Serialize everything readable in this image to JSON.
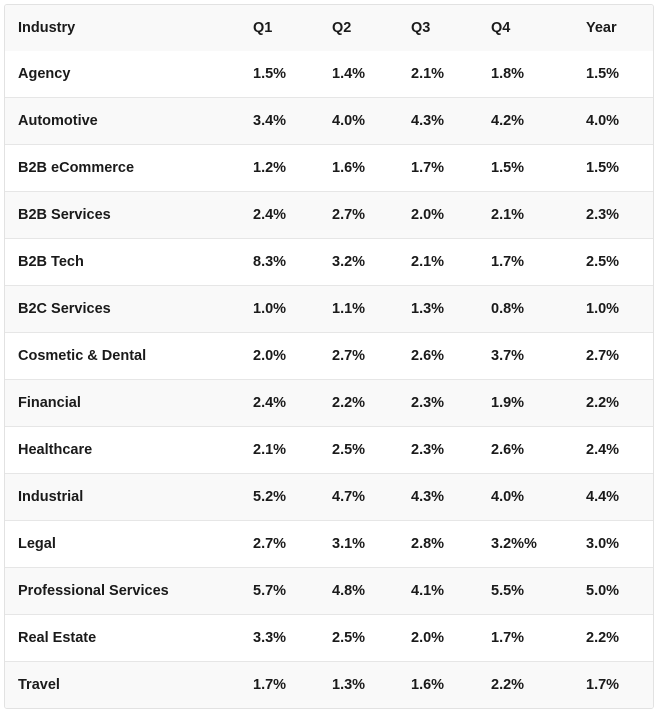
{
  "table": {
    "headers": [
      "Industry",
      "Q1",
      "Q2",
      "Q3",
      "Q4",
      "Year"
    ],
    "rows": [
      [
        "Agency",
        "1.5%",
        "1.4%",
        "2.1%",
        "1.8%",
        "1.5%"
      ],
      [
        "Automotive",
        "3.4%",
        "4.0%",
        "4.3%",
        "4.2%",
        "4.0%"
      ],
      [
        "B2B eCommerce",
        "1.2%",
        "1.6%",
        "1.7%",
        "1.5%",
        "1.5%"
      ],
      [
        "B2B Services",
        "2.4%",
        "2.7%",
        "2.0%",
        "2.1%",
        "2.3%"
      ],
      [
        "B2B Tech",
        "8.3%",
        "3.2%",
        "2.1%",
        "1.7%",
        "2.5%"
      ],
      [
        "B2C Services",
        "1.0%",
        "1.1%",
        "1.3%",
        "0.8%",
        "1.0%"
      ],
      [
        "Cosmetic & Dental",
        "2.0%",
        "2.7%",
        "2.6%",
        "3.7%",
        "2.7%"
      ],
      [
        "Financial",
        "2.4%",
        "2.2%",
        "2.3%",
        "1.9%",
        "2.2%"
      ],
      [
        "Healthcare",
        "2.1%",
        "2.5%",
        "2.3%",
        "2.6%",
        "2.4%"
      ],
      [
        "Industrial",
        "5.2%",
        "4.7%",
        "4.3%",
        "4.0%",
        "4.4%"
      ],
      [
        "Legal",
        "2.7%",
        "3.1%",
        "2.8%",
        "3.2%%",
        "3.0%"
      ],
      [
        "Professional Services",
        "5.7%",
        "4.8%",
        "4.1%",
        "5.5%",
        "5.0%"
      ],
      [
        "Real Estate",
        "3.3%",
        "2.5%",
        "2.0%",
        "1.7%",
        "2.2%"
      ],
      [
        "Travel",
        "1.7%",
        "1.3%",
        "1.6%",
        "2.2%",
        "1.7%"
      ]
    ]
  }
}
